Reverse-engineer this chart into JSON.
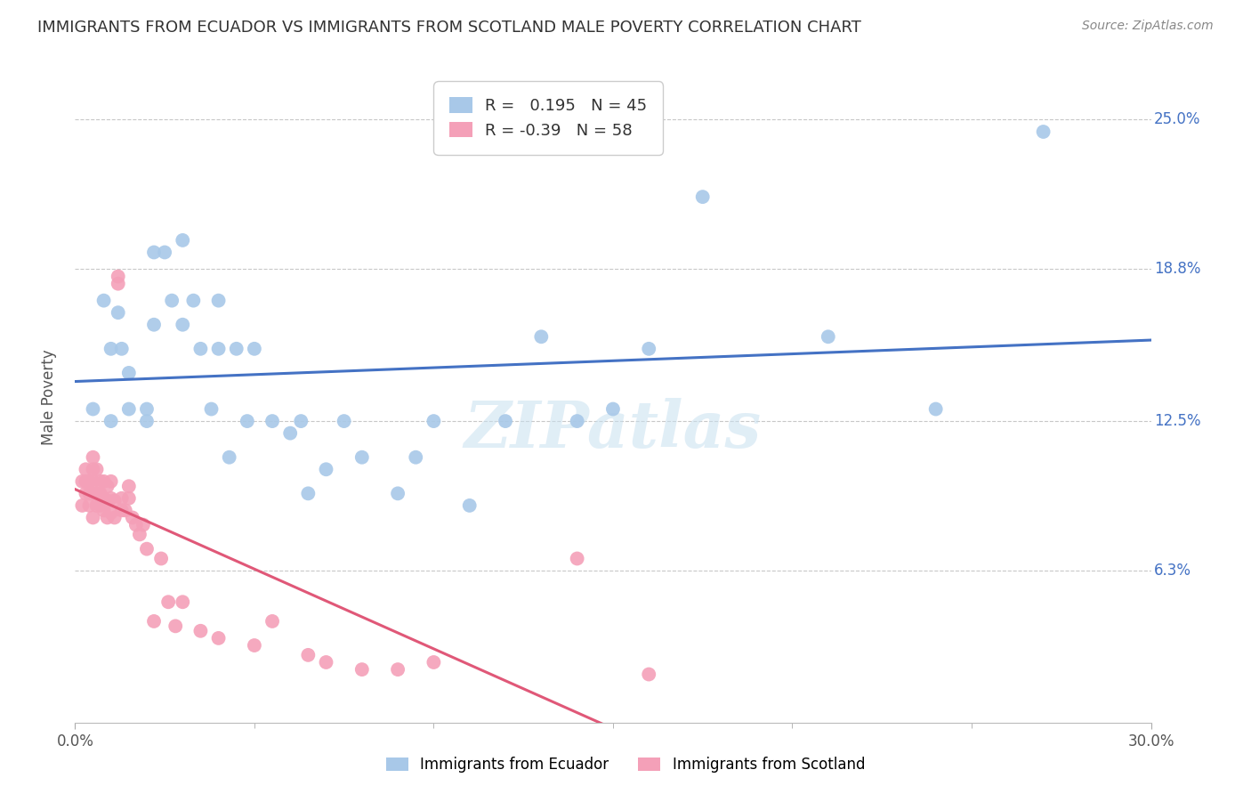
{
  "title": "IMMIGRANTS FROM ECUADOR VS IMMIGRANTS FROM SCOTLAND MALE POVERTY CORRELATION CHART",
  "source": "Source: ZipAtlas.com",
  "ylabel": "Male Poverty",
  "ytick_labels": [
    "25.0%",
    "18.8%",
    "12.5%",
    "6.3%"
  ],
  "ytick_values": [
    0.25,
    0.188,
    0.125,
    0.063
  ],
  "xlim": [
    0.0,
    0.3
  ],
  "ylim": [
    0.0,
    0.27
  ],
  "r_ecuador": 0.195,
  "n_ecuador": 45,
  "r_scotland": -0.39,
  "n_scotland": 58,
  "ecuador_color": "#a8c8e8",
  "scotland_color": "#f4a0b8",
  "ecuador_line_color": "#4472c4",
  "scotland_line_color": "#e05878",
  "ecuador_scatter_x": [
    0.005,
    0.008,
    0.01,
    0.01,
    0.012,
    0.013,
    0.015,
    0.015,
    0.02,
    0.02,
    0.022,
    0.022,
    0.025,
    0.027,
    0.03,
    0.03,
    0.033,
    0.035,
    0.038,
    0.04,
    0.04,
    0.043,
    0.045,
    0.048,
    0.05,
    0.055,
    0.06,
    0.063,
    0.065,
    0.07,
    0.075,
    0.08,
    0.09,
    0.095,
    0.1,
    0.11,
    0.12,
    0.13,
    0.14,
    0.15,
    0.16,
    0.175,
    0.21,
    0.24,
    0.27
  ],
  "ecuador_scatter_y": [
    0.13,
    0.175,
    0.155,
    0.125,
    0.17,
    0.155,
    0.13,
    0.145,
    0.125,
    0.13,
    0.165,
    0.195,
    0.195,
    0.175,
    0.2,
    0.165,
    0.175,
    0.155,
    0.13,
    0.155,
    0.175,
    0.11,
    0.155,
    0.125,
    0.155,
    0.125,
    0.12,
    0.125,
    0.095,
    0.105,
    0.125,
    0.11,
    0.095,
    0.11,
    0.125,
    0.09,
    0.125,
    0.16,
    0.125,
    0.13,
    0.155,
    0.218,
    0.16,
    0.13,
    0.245
  ],
  "scotland_scatter_x": [
    0.002,
    0.002,
    0.003,
    0.003,
    0.003,
    0.004,
    0.004,
    0.004,
    0.005,
    0.005,
    0.005,
    0.005,
    0.005,
    0.006,
    0.006,
    0.006,
    0.007,
    0.007,
    0.007,
    0.008,
    0.008,
    0.008,
    0.009,
    0.009,
    0.009,
    0.01,
    0.01,
    0.01,
    0.011,
    0.011,
    0.012,
    0.012,
    0.013,
    0.013,
    0.014,
    0.015,
    0.015,
    0.016,
    0.017,
    0.018,
    0.019,
    0.02,
    0.022,
    0.024,
    0.026,
    0.028,
    0.03,
    0.035,
    0.04,
    0.05,
    0.055,
    0.065,
    0.07,
    0.08,
    0.09,
    0.1,
    0.14,
    0.16
  ],
  "scotland_scatter_y": [
    0.1,
    0.09,
    0.095,
    0.1,
    0.105,
    0.09,
    0.095,
    0.1,
    0.085,
    0.095,
    0.1,
    0.105,
    0.11,
    0.09,
    0.095,
    0.105,
    0.09,
    0.095,
    0.1,
    0.088,
    0.093,
    0.1,
    0.085,
    0.092,
    0.098,
    0.087,
    0.093,
    0.1,
    0.085,
    0.092,
    0.182,
    0.185,
    0.088,
    0.093,
    0.088,
    0.093,
    0.098,
    0.085,
    0.082,
    0.078,
    0.082,
    0.072,
    0.042,
    0.068,
    0.05,
    0.04,
    0.05,
    0.038,
    0.035,
    0.032,
    0.042,
    0.028,
    0.025,
    0.022,
    0.022,
    0.025,
    0.068,
    0.02
  ],
  "watermark": "ZIPatlas",
  "background_color": "#ffffff",
  "grid_color": "#c8c8c8"
}
